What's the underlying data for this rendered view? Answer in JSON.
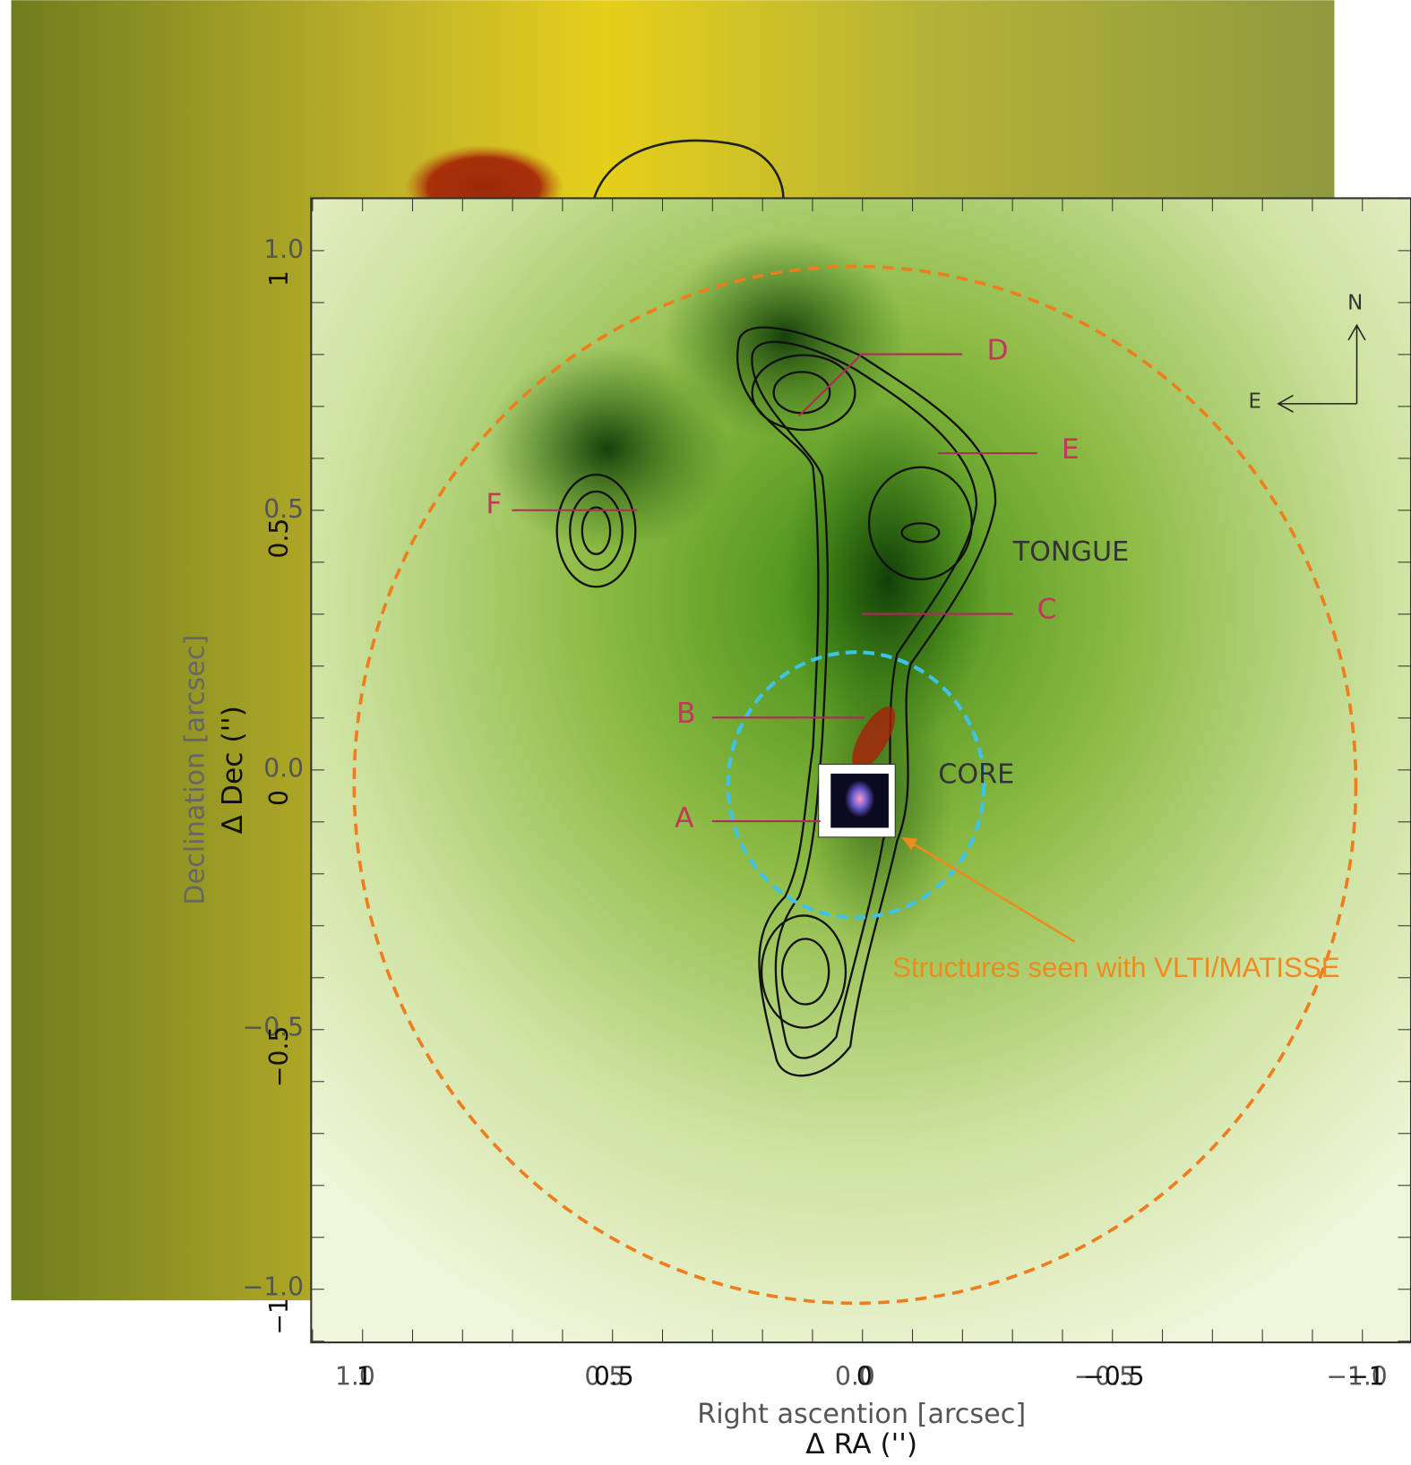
{
  "back_panel": {
    "y_label": "Δ Dec ('')",
    "x_label": "Δ RA ('')",
    "y_ticks": [
      "1",
      "0.5",
      "0",
      "−0.5",
      "−1"
    ],
    "x_ticks": [
      "1",
      "0.5",
      "0",
      "−0.5",
      "−1"
    ]
  },
  "front_panel": {
    "y_label": "Declination [arcsec]",
    "x_label": "Right ascention [arcsec]",
    "y_ticks": [
      "1.0",
      "0.5",
      "0.0",
      "−0.5",
      "−1.0"
    ],
    "x_ticks": [
      "1.0",
      "0.5",
      "0.0",
      "−0.5",
      "−1.0"
    ]
  },
  "markers": [
    "A",
    "B",
    "C",
    "D",
    "E",
    "F"
  ],
  "regions": {
    "tongue": "TONGUE",
    "core": "CORE"
  },
  "compass": {
    "north": "N",
    "east": "E"
  },
  "annotation": "Structures seen with VLTI/MATISSE"
}
